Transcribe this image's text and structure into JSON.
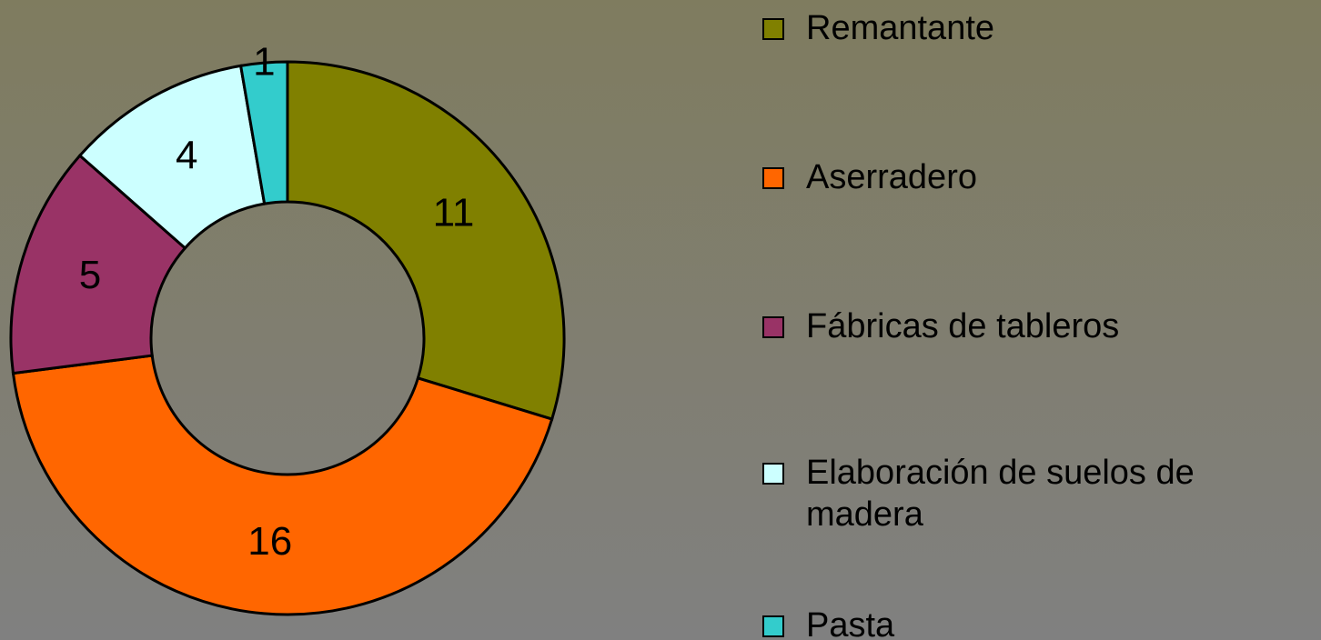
{
  "chart_data": {
    "type": "pie",
    "donut": true,
    "categories": [
      "Remantante",
      "Aserradero",
      "Fábricas de tableros",
      "Elaboración de suelos de madera",
      "Pasta"
    ],
    "values": [
      11,
      16,
      5,
      4,
      1
    ],
    "colors": [
      "#808000",
      "#ff6600",
      "#993366",
      "#ccffff",
      "#33cccc"
    ]
  }
}
